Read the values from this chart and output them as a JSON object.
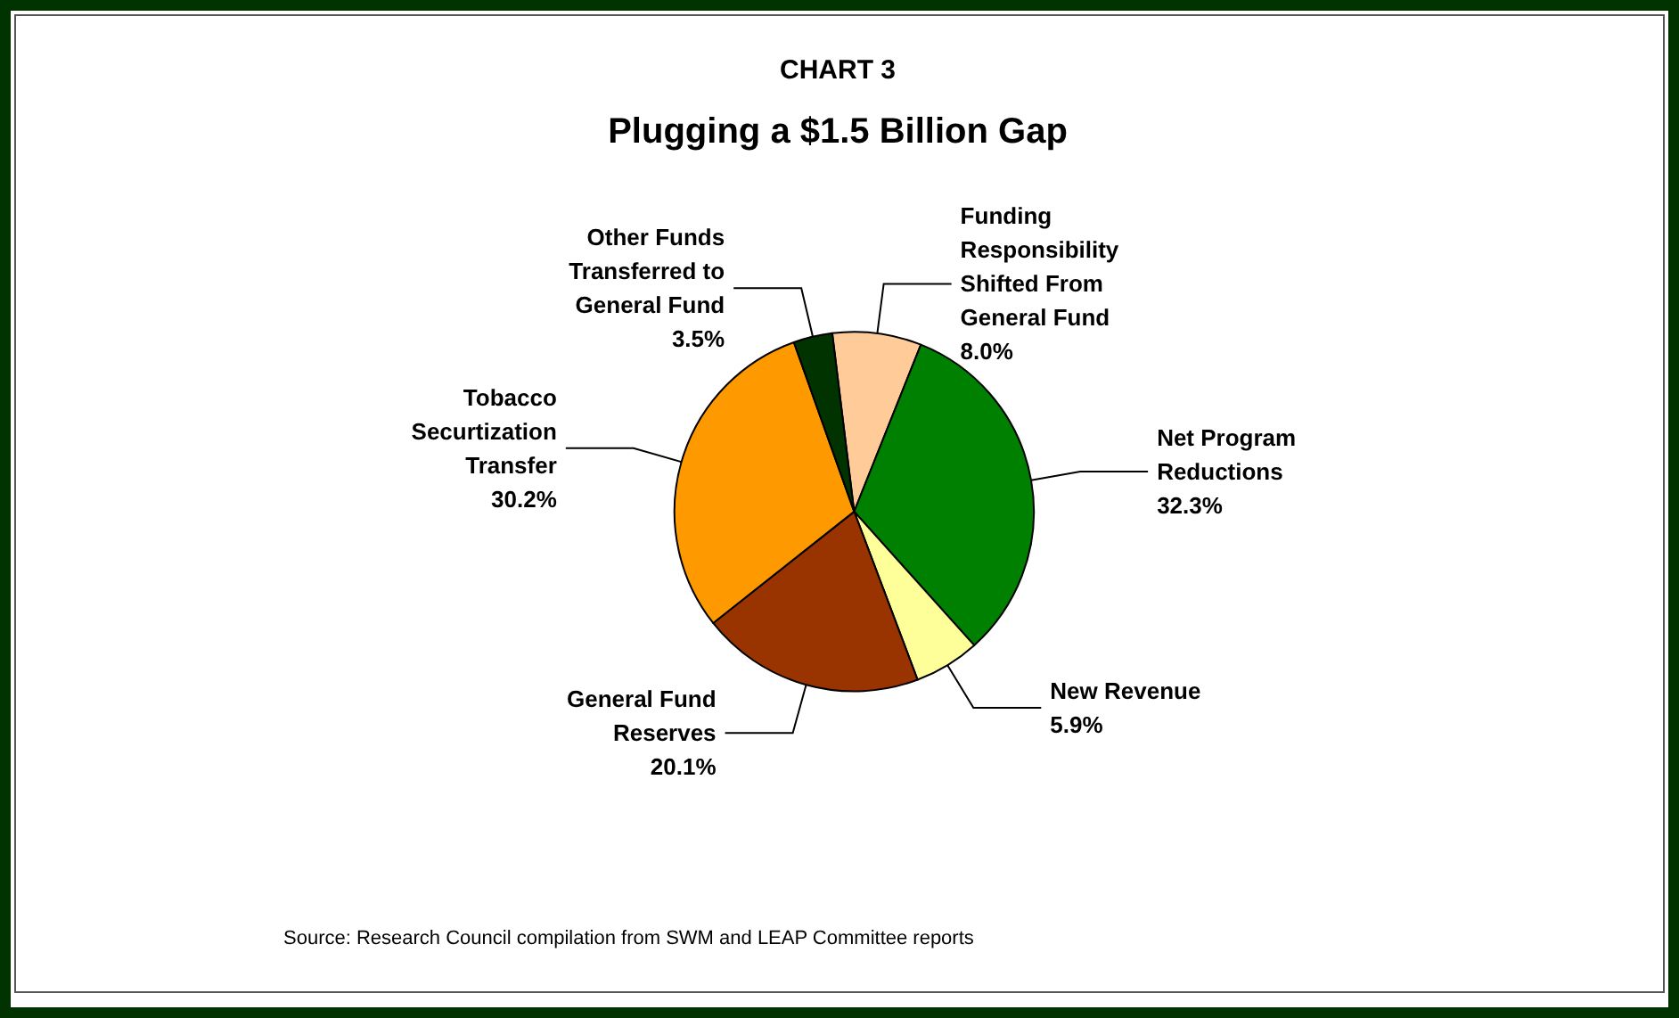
{
  "chart_data": {
    "type": "pie",
    "title": "CHART 3",
    "subtitle": "Plugging a $1.5 Billion Gap",
    "categories": [
      "Funding\nResponsibility\nShifted From\nGeneral Fund",
      "Net Program\nReductions",
      "New Revenue",
      "General Fund\nReserves",
      "Tobacco\nSecurtization\nTransfer",
      "Other Funds\nTransferred to\nGeneral Fund"
    ],
    "values": [
      8.0,
      32.3,
      5.9,
      20.1,
      30.2,
      3.5
    ],
    "value_labels": [
      "8.0%",
      "32.3%",
      "5.9%",
      "20.1%",
      "30.2%",
      "3.5%"
    ],
    "colors": [
      "#ffcc99",
      "#008000",
      "#ffff99",
      "#993300",
      "#ff9900",
      "#003300"
    ],
    "legend": false,
    "annotations": [
      "Source: Research Council compilation from SWM and LEAP Committee reports"
    ]
  }
}
